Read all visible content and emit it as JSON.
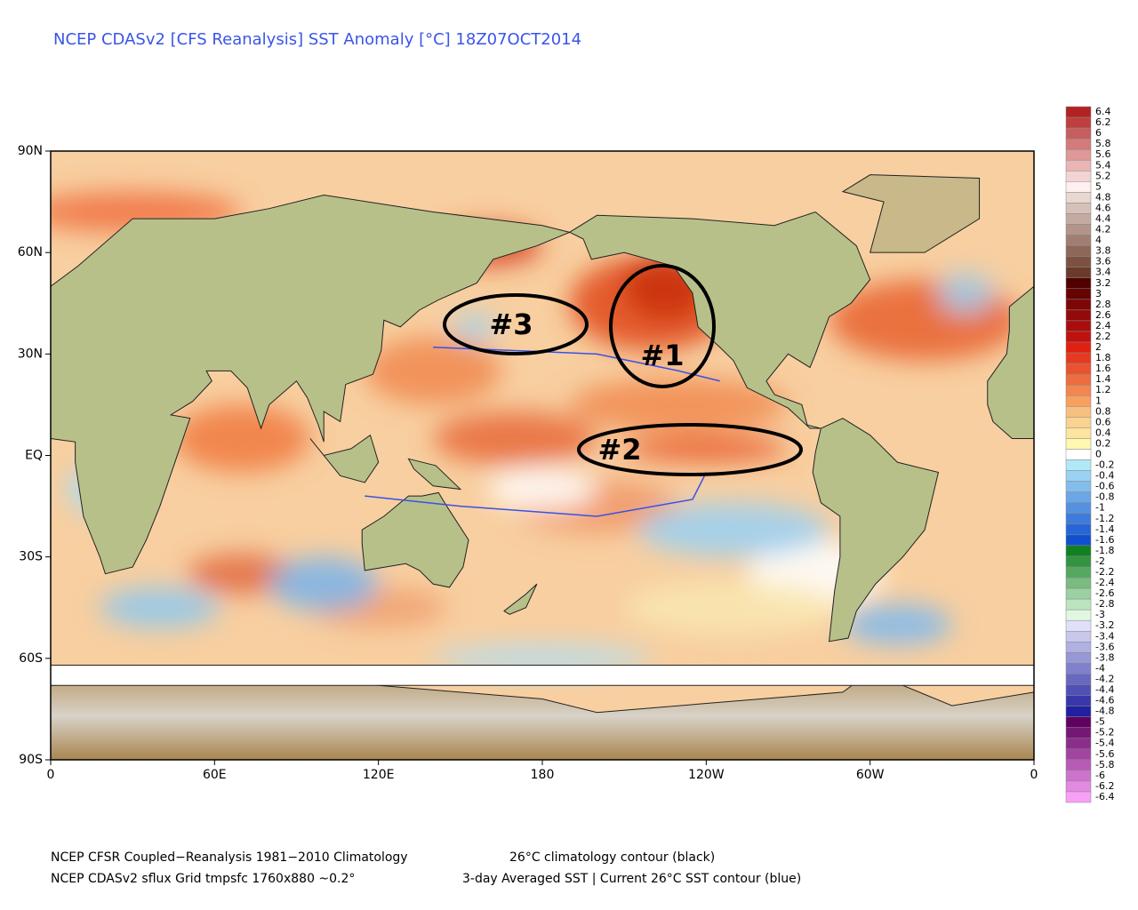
{
  "title": "NCEP CDASv2 [CFS Reanalysis] SST Anomaly [°C] 18Z07OCT2014",
  "footer": [
    "NCEP CFSR Coupled−Reanalysis 1981−2010 Climatology",
    "26°C climatology contour (black)",
    "NCEP CDASv2 sflux Grid tmpsfc 1760x880 ~0.2°",
    "3-day Averaged SST | Current 26°C SST contour (blue)"
  ],
  "map": {
    "xlim": [
      0,
      360
    ],
    "ylim": [
      -90,
      90
    ],
    "xticks": [
      0,
      {
        "value": 60,
        "label": "60E"
      },
      {
        "value": 120,
        "label": "120E"
      },
      180,
      {
        "value": 240,
        "label": "120W"
      },
      {
        "value": 300,
        "label": "60W"
      },
      {
        "value": 360,
        "label": "0"
      }
    ],
    "yticks": [
      {
        "value": 90,
        "label": "90N"
      },
      {
        "value": 60,
        "label": "60N"
      },
      {
        "value": 30,
        "label": "30N"
      },
      {
        "value": 0,
        "label": "EQ"
      },
      {
        "value": -30,
        "label": "30S"
      },
      {
        "value": -60,
        "label": "60S"
      },
      {
        "value": -90,
        "label": "90S"
      }
    ]
  },
  "colorbar": {
    "levels": [
      6.4,
      6.2,
      6,
      5.8,
      5.6,
      5.4,
      5.2,
      5,
      4.8,
      4.6,
      4.4,
      4.2,
      4,
      3.8,
      3.6,
      3.4,
      3.2,
      3,
      2.8,
      2.6,
      2.4,
      2.2,
      2,
      1.8,
      1.6,
      1.4,
      1.2,
      1,
      0.8,
      0.6,
      0.4,
      0.2,
      0,
      -0.2,
      -0.4,
      -0.6,
      -0.8,
      -1,
      -1.2,
      -1.4,
      -1.6,
      -1.8,
      -2,
      -2.2,
      -2.4,
      -2.6,
      -2.8,
      -3,
      -3.2,
      -3.4,
      -3.6,
      -3.8,
      -4,
      -4.2,
      -4.4,
      -4.6,
      -4.8,
      -5,
      -5.2,
      -5.4,
      -5.6,
      -5.8,
      -6,
      -6.2,
      -6.4
    ]
  },
  "annotations": [
    "#1",
    "#2",
    "#3"
  ]
}
